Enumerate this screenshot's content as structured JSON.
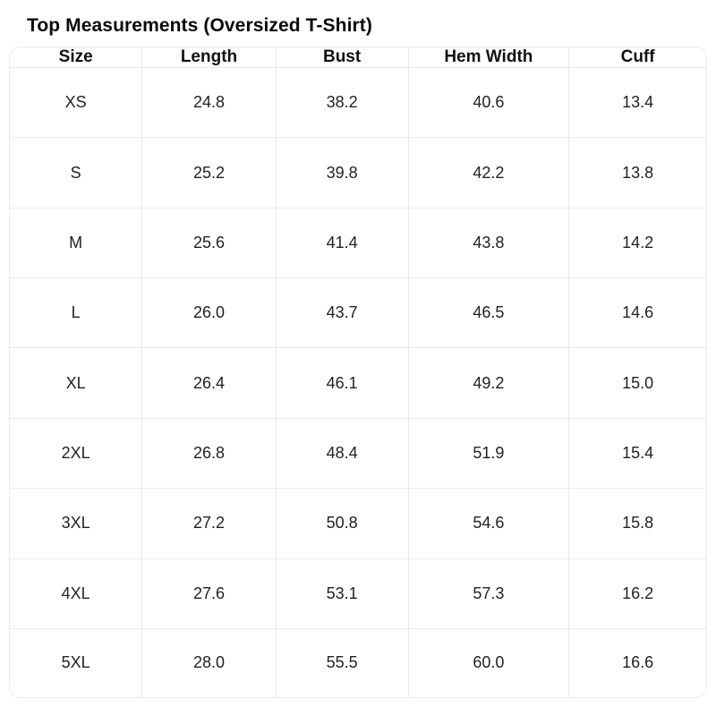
{
  "title": "Top Measurements (Oversized T-Shirt)",
  "chart_data": {
    "type": "table",
    "title": "Top Measurements (Oversized T-Shirt)",
    "columns": [
      "Size",
      "Length",
      "Bust",
      "Hem Width",
      "Cuff"
    ],
    "rows": [
      [
        "XS",
        "24.8",
        "38.2",
        "40.6",
        "13.4"
      ],
      [
        "S",
        "25.2",
        "39.8",
        "42.2",
        "13.8"
      ],
      [
        "M",
        "25.6",
        "41.4",
        "43.8",
        "14.2"
      ],
      [
        "L",
        "26.0",
        "43.7",
        "46.5",
        "14.6"
      ],
      [
        "XL",
        "26.4",
        "46.1",
        "49.2",
        "15.0"
      ],
      [
        "2XL",
        "26.8",
        "48.4",
        "51.9",
        "15.4"
      ],
      [
        "3XL",
        "27.2",
        "50.8",
        "54.6",
        "15.8"
      ],
      [
        "4XL",
        "27.6",
        "53.1",
        "57.3",
        "16.2"
      ],
      [
        "5XL",
        "28.0",
        "55.5",
        "60.0",
        "16.6"
      ]
    ]
  },
  "colors": {
    "background": "#ffffff",
    "grid_border": "#ebebeb",
    "title_text": "#0a0a0a",
    "header_text": "#111111",
    "cell_text": "#222222"
  }
}
